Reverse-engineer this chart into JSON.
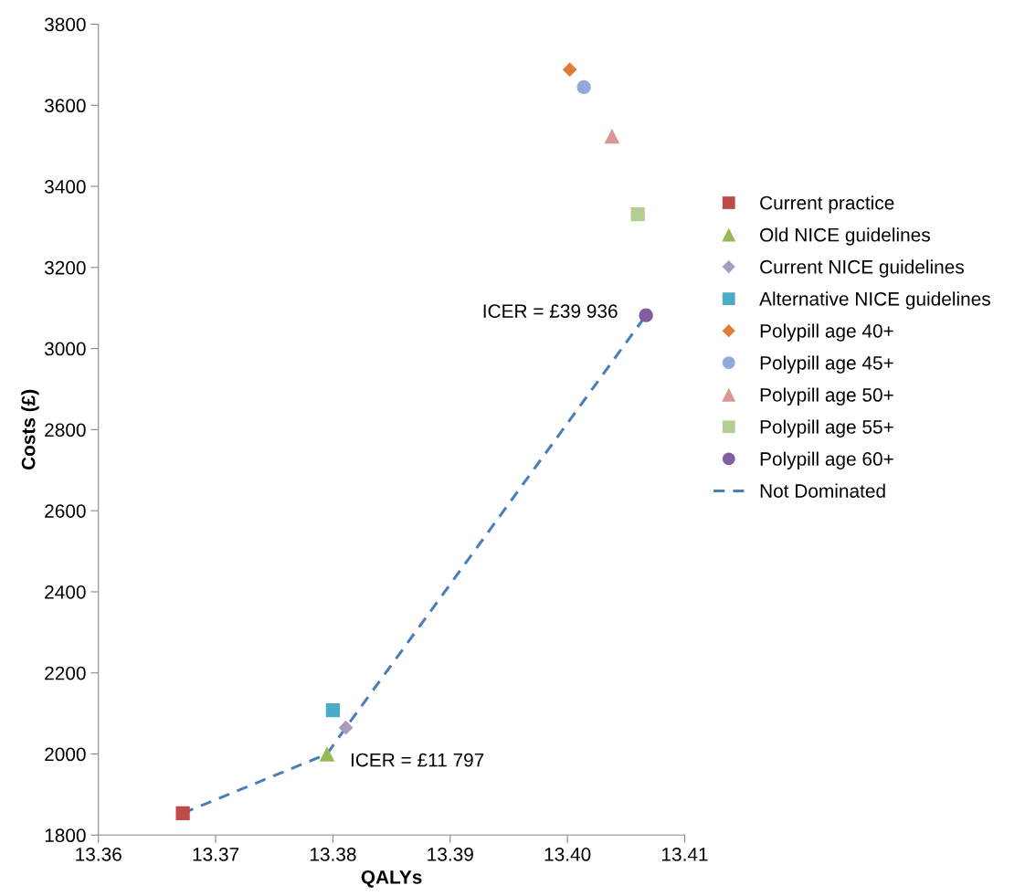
{
  "chart_data": {
    "type": "scatter",
    "xlabel": "QALYs",
    "ylabel": "Costs (£)",
    "xlim": [
      13.36,
      13.41
    ],
    "xticks": [
      {
        "value": 13.36,
        "label": "13.36"
      },
      {
        "value": 13.37,
        "label": "13.37"
      },
      {
        "value": 13.38,
        "label": "13.38"
      },
      {
        "value": 13.39,
        "label": "13.39"
      },
      {
        "value": 13.4,
        "label": "13.40"
      },
      {
        "value": 13.41,
        "label": "13.41"
      }
    ],
    "ylim": [
      1800,
      3800
    ],
    "yticks": [
      1800,
      2000,
      2200,
      2400,
      2600,
      2800,
      3000,
      3200,
      3400,
      3600,
      3800
    ],
    "grid": false,
    "legend": "right",
    "series": [
      {
        "name": "Current practice",
        "color": "#be4b48",
        "marker": "square",
        "x": [
          13.3672
        ],
        "values": [
          1854
        ]
      },
      {
        "name": "Old NICE guidelines",
        "color": "#98b954",
        "marker": "triangle",
        "x": [
          13.3795
        ],
        "values": [
          2000
        ]
      },
      {
        "name": "Current NICE guidelines",
        "color": "#a99bbd",
        "marker": "diamond",
        "x": [
          13.3811
        ],
        "values": [
          2065
        ]
      },
      {
        "name": "Alternative NICE guidelines",
        "color": "#4bacc6",
        "marker": "square",
        "x": [
          13.38
        ],
        "values": [
          2108
        ]
      },
      {
        "name": "Polypill age 40+",
        "color": "#e07b39",
        "marker": "diamond",
        "x": [
          13.4002
        ],
        "values": [
          3688
        ]
      },
      {
        "name": "Polypill age 45+",
        "color": "#8faadc",
        "marker": "circle",
        "x": [
          13.4014
        ],
        "values": [
          3645
        ]
      },
      {
        "name": "Polypill age 50+",
        "color": "#d99694",
        "marker": "triangle",
        "x": [
          13.4038
        ],
        "values": [
          3524
        ]
      },
      {
        "name": "Polypill age 55+",
        "color": "#b3cf8f",
        "marker": "square",
        "x": [
          13.406
        ],
        "values": [
          3331
        ]
      },
      {
        "name": "Polypill age 60+",
        "color": "#7f5f9f",
        "marker": "circle",
        "x": [
          13.4067
        ],
        "values": [
          3082
        ]
      },
      {
        "name": "Not Dominated",
        "type": "line",
        "color": "#4a7ebb",
        "marker": "none",
        "line_style": "dashed",
        "x": [
          13.3672,
          13.3795,
          13.3811,
          13.4067
        ],
        "values": [
          1854,
          2000,
          2065,
          3082
        ]
      }
    ],
    "annotations": [
      {
        "text": "ICER = £39 936",
        "x": 13.4067,
        "y": 3082
      },
      {
        "text": "ICER = £11 797",
        "x": 13.3795,
        "y": 2000
      }
    ]
  }
}
